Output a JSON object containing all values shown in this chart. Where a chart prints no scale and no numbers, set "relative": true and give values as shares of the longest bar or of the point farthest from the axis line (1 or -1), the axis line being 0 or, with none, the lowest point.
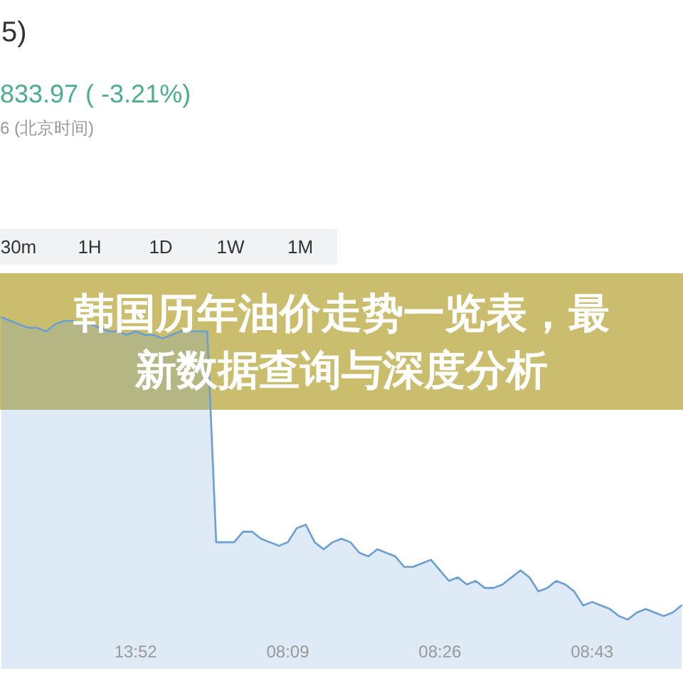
{
  "chart_data": {
    "type": "area",
    "title": "韩国历年油价走势一览表，最新数据查询与深度分析",
    "annotations": [
      "5)",
      "833.97 ( -3.21%)",
      "6 (北京时间)",
      "30m",
      "1H",
      "1D",
      "1W",
      "1M"
    ],
    "categories": [
      null,
      null,
      null,
      null,
      null,
      null,
      null,
      null,
      null,
      null,
      null,
      null,
      null,
      null,
      null,
      "13:52",
      null,
      null,
      null,
      null,
      null,
      null,
      null,
      null,
      null,
      null,
      null,
      null,
      null,
      null,
      null,
      null,
      "08:09",
      null,
      null,
      null,
      null,
      null,
      null,
      null,
      null,
      null,
      null,
      null,
      null,
      null,
      null,
      null,
      null,
      "08:26",
      null,
      null,
      null,
      null,
      null,
      null,
      null,
      null,
      null,
      null,
      null,
      null,
      null,
      null,
      null,
      null,
      "08:43",
      null,
      null,
      null,
      null,
      null,
      null,
      null,
      null,
      null,
      null
    ],
    "series": [
      {
        "color": "#6a9fd4",
        "values": [
          1.0,
          0.99,
          0.98,
          0.97,
          0.97,
          0.96,
          0.98,
          0.99,
          0.99,
          0.98,
          0.98,
          0.97,
          0.96,
          0.96,
          0.95,
          0.96,
          0.95,
          0.95,
          0.94,
          0.95,
          0.96,
          0.96,
          0.96,
          0.96,
          0.36,
          0.36,
          0.36,
          0.39,
          0.39,
          0.37,
          0.36,
          0.35,
          0.36,
          0.4,
          0.41,
          0.36,
          0.34,
          0.36,
          0.37,
          0.36,
          0.33,
          0.32,
          0.34,
          0.33,
          0.32,
          0.29,
          0.29,
          0.3,
          0.31,
          0.28,
          0.25,
          0.26,
          0.24,
          0.25,
          0.23,
          0.23,
          0.24,
          0.26,
          0.28,
          0.26,
          0.22,
          0.23,
          0.25,
          0.24,
          0.22,
          0.18,
          0.19,
          0.18,
          0.17,
          0.15,
          0.14,
          0.16,
          0.17,
          0.16,
          0.15,
          0.16,
          0.18
        ]
      }
    ],
    "relative": true
  }
}
